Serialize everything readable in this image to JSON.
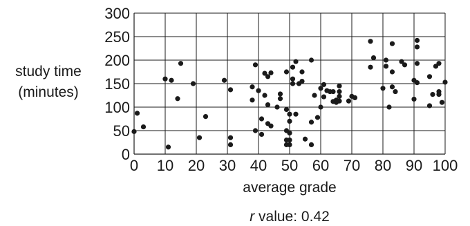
{
  "chart_data": {
    "type": "scatter",
    "xlabel": "average grade",
    "ylabel_lines": [
      "study time",
      "(minutes)"
    ],
    "annotation": {
      "italic": "r",
      "text": " value: 0.42"
    },
    "xlim": [
      0,
      100
    ],
    "ylim": [
      0,
      300
    ],
    "x_ticks": [
      0,
      10,
      20,
      30,
      40,
      50,
      60,
      70,
      80,
      90,
      100
    ],
    "y_ticks": [
      0,
      50,
      100,
      150,
      200,
      250,
      300
    ],
    "grid": true,
    "points": [
      {
        "x": 0,
        "y": 48
      },
      {
        "x": 1,
        "y": 87
      },
      {
        "x": 3,
        "y": 58
      },
      {
        "x": 10,
        "y": 160
      },
      {
        "x": 11,
        "y": 15
      },
      {
        "x": 12,
        "y": 157
      },
      {
        "x": 14,
        "y": 118
      },
      {
        "x": 15,
        "y": 193
      },
      {
        "x": 19,
        "y": 150
      },
      {
        "x": 21,
        "y": 35
      },
      {
        "x": 23,
        "y": 80
      },
      {
        "x": 29,
        "y": 157
      },
      {
        "x": 31,
        "y": 137
      },
      {
        "x": 31,
        "y": 35
      },
      {
        "x": 31,
        "y": 20
      },
      {
        "x": 38,
        "y": 143
      },
      {
        "x": 38,
        "y": 115
      },
      {
        "x": 39,
        "y": 190
      },
      {
        "x": 39,
        "y": 50
      },
      {
        "x": 40,
        "y": 135
      },
      {
        "x": 41,
        "y": 75
      },
      {
        "x": 41,
        "y": 42
      },
      {
        "x": 42,
        "y": 172
      },
      {
        "x": 42,
        "y": 125
      },
      {
        "x": 43,
        "y": 165
      },
      {
        "x": 43,
        "y": 105
      },
      {
        "x": 43,
        "y": 65
      },
      {
        "x": 44,
        "y": 173
      },
      {
        "x": 44,
        "y": 60
      },
      {
        "x": 46,
        "y": 100
      },
      {
        "x": 47,
        "y": 128
      },
      {
        "x": 47,
        "y": 118
      },
      {
        "x": 49,
        "y": 175
      },
      {
        "x": 49,
        "y": 95
      },
      {
        "x": 49,
        "y": 50
      },
      {
        "x": 49,
        "y": 20
      },
      {
        "x": 49,
        "y": 30
      },
      {
        "x": 50,
        "y": 85
      },
      {
        "x": 50,
        "y": 70
      },
      {
        "x": 50,
        "y": 45
      },
      {
        "x": 50,
        "y": 30
      },
      {
        "x": 50,
        "y": 20
      },
      {
        "x": 51,
        "y": 185
      },
      {
        "x": 51,
        "y": 160
      },
      {
        "x": 51,
        "y": 150
      },
      {
        "x": 52,
        "y": 197
      },
      {
        "x": 52,
        "y": 85
      },
      {
        "x": 54,
        "y": 175
      },
      {
        "x": 54,
        "y": 155
      },
      {
        "x": 53,
        "y": 150
      },
      {
        "x": 55,
        "y": 32
      },
      {
        "x": 57,
        "y": 200
      },
      {
        "x": 57,
        "y": 68
      },
      {
        "x": 57,
        "y": 20
      },
      {
        "x": 58,
        "y": 125
      },
      {
        "x": 59,
        "y": 78
      },
      {
        "x": 60,
        "y": 140
      },
      {
        "x": 60,
        "y": 100
      },
      {
        "x": 61,
        "y": 148
      },
      {
        "x": 61,
        "y": 122
      },
      {
        "x": 62,
        "y": 135
      },
      {
        "x": 63,
        "y": 133
      },
      {
        "x": 64,
        "y": 133
      },
      {
        "x": 64,
        "y": 112
      },
      {
        "x": 65,
        "y": 110
      },
      {
        "x": 65,
        "y": 115
      },
      {
        "x": 66,
        "y": 145
      },
      {
        "x": 66,
        "y": 133
      },
      {
        "x": 66,
        "y": 123
      },
      {
        "x": 66,
        "y": 113
      },
      {
        "x": 69,
        "y": 113
      },
      {
        "x": 70,
        "y": 123
      },
      {
        "x": 71,
        "y": 120
      },
      {
        "x": 76,
        "y": 240
      },
      {
        "x": 76,
        "y": 185
      },
      {
        "x": 77,
        "y": 205
      },
      {
        "x": 80,
        "y": 140
      },
      {
        "x": 81,
        "y": 200
      },
      {
        "x": 81,
        "y": 187
      },
      {
        "x": 82,
        "y": 100
      },
      {
        "x": 83,
        "y": 235
      },
      {
        "x": 83,
        "y": 175
      },
      {
        "x": 83,
        "y": 143
      },
      {
        "x": 84,
        "y": 133
      },
      {
        "x": 86,
        "y": 197
      },
      {
        "x": 87,
        "y": 190
      },
      {
        "x": 90,
        "y": 157
      },
      {
        "x": 90,
        "y": 117
      },
      {
        "x": 91,
        "y": 242
      },
      {
        "x": 91,
        "y": 228
      },
      {
        "x": 91,
        "y": 193
      },
      {
        "x": 91,
        "y": 152
      },
      {
        "x": 95,
        "y": 165
      },
      {
        "x": 95,
        "y": 103
      },
      {
        "x": 96,
        "y": 127
      },
      {
        "x": 97,
        "y": 187
      },
      {
        "x": 98,
        "y": 193
      },
      {
        "x": 98,
        "y": 133
      },
      {
        "x": 98,
        "y": 127
      },
      {
        "x": 99,
        "y": 110
      },
      {
        "x": 100,
        "y": 153
      }
    ]
  }
}
